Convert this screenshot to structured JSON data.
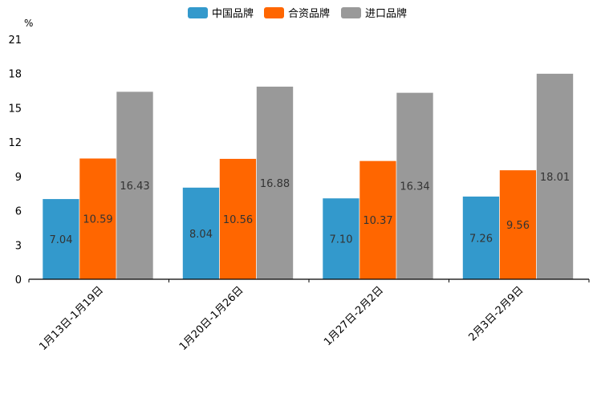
{
  "chart_data": {
    "type": "bar",
    "title": "",
    "xlabel": "",
    "ylabel": "%",
    "ylim": [
      0,
      21
    ],
    "yticks": [
      0,
      3,
      6,
      9,
      12,
      15,
      18,
      21
    ],
    "grid": false,
    "legend_position": "top-center",
    "categories": [
      "1月13日-1月19日",
      "1月20日-1月26日",
      "1月27日-2月2日",
      "2月3日-2月9日"
    ],
    "series": [
      {
        "name": "中国品牌",
        "color": "#3399cc",
        "values": [
          7.04,
          8.04,
          7.1,
          7.26
        ],
        "labels": [
          "7.04",
          "8.04",
          "7.10",
          "7.26"
        ]
      },
      {
        "name": "合资品牌",
        "color": "#ff6600",
        "values": [
          10.59,
          10.56,
          10.37,
          9.56
        ],
        "labels": [
          "10.59",
          "10.56",
          "10.37",
          "9.56"
        ]
      },
      {
        "name": "进口品牌",
        "color": "#999999",
        "values": [
          16.43,
          16.88,
          16.34,
          18.01
        ],
        "labels": [
          "16.43",
          "16.88",
          "16.34",
          "18.01"
        ]
      }
    ]
  }
}
